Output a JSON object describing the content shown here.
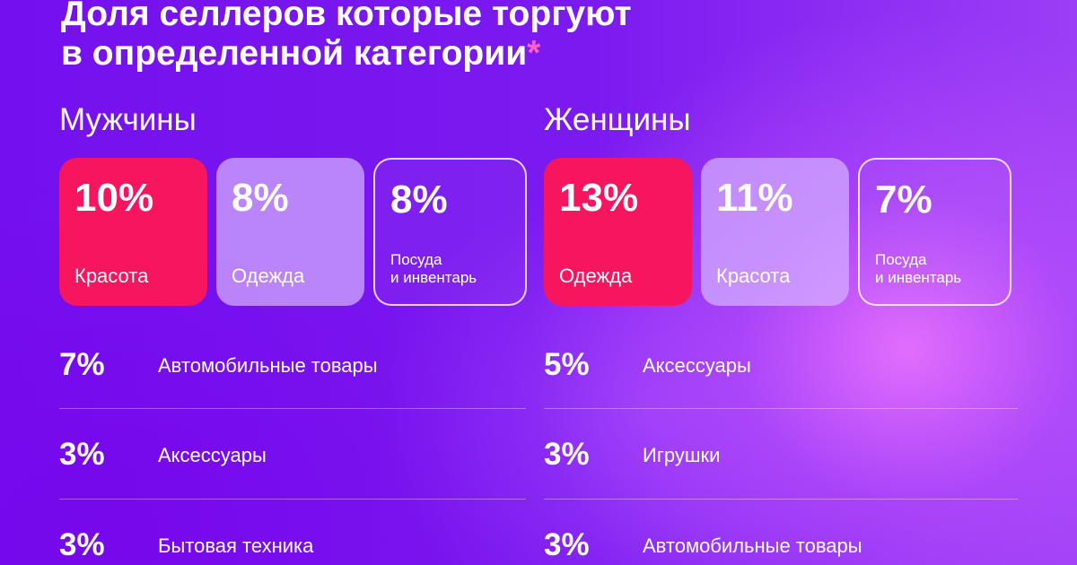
{
  "title": {
    "line1": "Доля селлеров которые торгуют",
    "line2": "в определенной категории",
    "asterisk": "*"
  },
  "men": {
    "heading": "Мужчины",
    "cards": [
      {
        "value": "10%",
        "label": "Красота",
        "style": "pink"
      },
      {
        "value": "8%",
        "label": "Одежда",
        "style": "lilac"
      },
      {
        "value": "8%",
        "label": "Посуда\nи инвентарь",
        "style": "outline"
      }
    ],
    "list": [
      {
        "value": "7%",
        "label": "Автомобильные товары"
      },
      {
        "value": "3%",
        "label": "Аксессуары"
      },
      {
        "value": "3%",
        "label": "Бытовая техника"
      }
    ]
  },
  "women": {
    "heading": "Женщины",
    "cards": [
      {
        "value": "13%",
        "label": "Одежда",
        "style": "pink"
      },
      {
        "value": "11%",
        "label": "Красота",
        "style": "lilac"
      },
      {
        "value": "7%",
        "label": "Посуда\nи инвентарь",
        "style": "outline"
      }
    ],
    "list": [
      {
        "value": "5%",
        "label": "Аксессуары"
      },
      {
        "value": "3%",
        "label": "Игрушки"
      },
      {
        "value": "3%",
        "label": "Автомобильные товары"
      }
    ]
  },
  "colors": {
    "background": "#7410ee",
    "card_highlight": "#f7155f",
    "card_secondary": "#d4b0ff",
    "asterisk": "#ff5fc7"
  }
}
